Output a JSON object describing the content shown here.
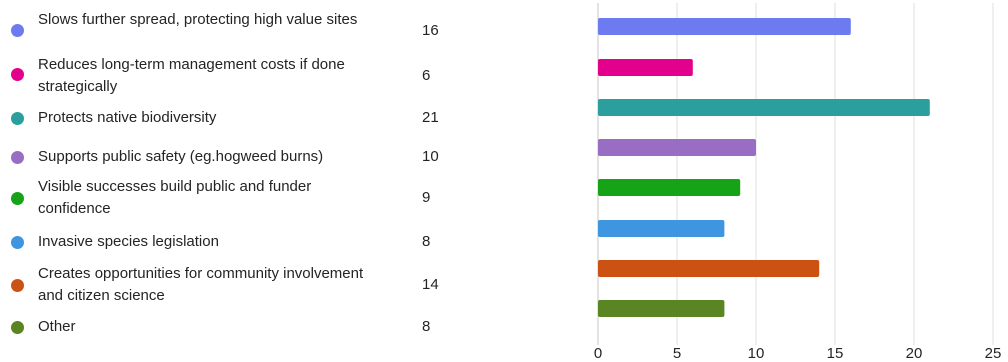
{
  "chart_data": {
    "type": "bar",
    "orientation": "horizontal",
    "categories": [
      "Slows further spread, protecting high value sites",
      "Reduces long-term management costs if done strategically",
      "Protects native biodiversity",
      "Supports public safety (eg.hogweed burns)",
      "Visible successes build public and funder confidence",
      "Invasive species legislation",
      "Creates opportunities for community involvement and citizen science",
      "Other"
    ],
    "values": [
      16,
      6,
      21,
      10,
      9,
      8,
      14,
      8
    ],
    "colors": [
      "#6C7CF0",
      "#E3008C",
      "#2B9E9E",
      "#9A6DC4",
      "#17A317",
      "#3E96E0",
      "#CC5214",
      "#598523"
    ],
    "xlim": [
      0,
      25
    ],
    "xticks": [
      0,
      5,
      10,
      15,
      20,
      25
    ],
    "grid": true
  }
}
